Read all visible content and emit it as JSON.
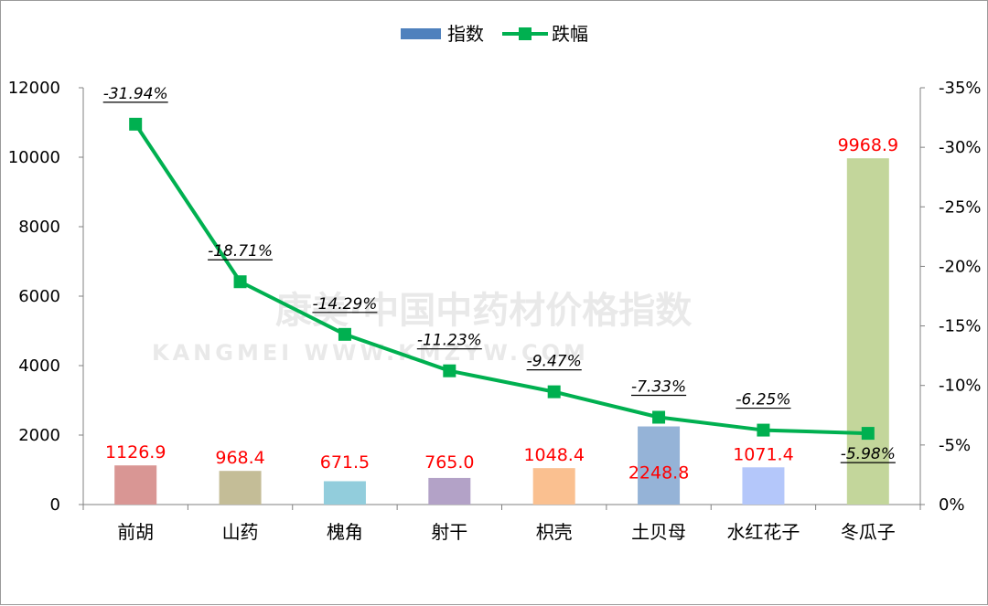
{
  "chart_data": {
    "type": "bar",
    "categories": [
      "前胡",
      "山药",
      "槐角",
      "射干",
      "枳壳",
      "土贝母",
      "水红花子",
      "冬瓜子"
    ],
    "series": [
      {
        "name": "指数",
        "type": "bar",
        "axis": "left",
        "values": [
          1126.9,
          968.4,
          671.5,
          765.0,
          1048.4,
          2248.8,
          1071.4,
          9968.9
        ],
        "labels": [
          "1126.9",
          "968.4",
          "671.5",
          "765.0",
          "1048.4",
          "2248.8",
          "1071.4",
          "9968.9"
        ],
        "colors": [
          "#d99694",
          "#c4bd97",
          "#92cddc",
          "#b3a2c7",
          "#fac090",
          "#95b3d7",
          "#b4c7fa",
          "#c3d69b"
        ]
      },
      {
        "name": "跌幅",
        "type": "line",
        "axis": "right",
        "values": [
          -31.94,
          -18.71,
          -14.29,
          -11.23,
          -9.47,
          -7.33,
          -6.25,
          -5.98
        ],
        "labels": [
          "-31.94%",
          "-18.71%",
          "-14.29%",
          "-11.23%",
          "-9.47%",
          "-7.33%",
          "-6.25%",
          "-5.98%"
        ],
        "color": "#00b050"
      }
    ],
    "y_left": {
      "min": 0,
      "max": 12000,
      "ticks": [
        "0",
        "2000",
        "4000",
        "6000",
        "8000",
        "10000",
        "12000"
      ]
    },
    "y_right": {
      "min": 0,
      "max": -35,
      "reversed": true,
      "ticks": [
        "0%",
        "-5%",
        "-10%",
        "-15%",
        "-20%",
        "-25%",
        "-30%",
        "-35%"
      ]
    },
    "value_label_color": "#ff0000",
    "legend_position": "top-center",
    "grid": false
  },
  "watermark": {
    "line1": "康美·中国中药材价格指数",
    "line2": "KANGMEI WWW.KMZYW.COM"
  }
}
